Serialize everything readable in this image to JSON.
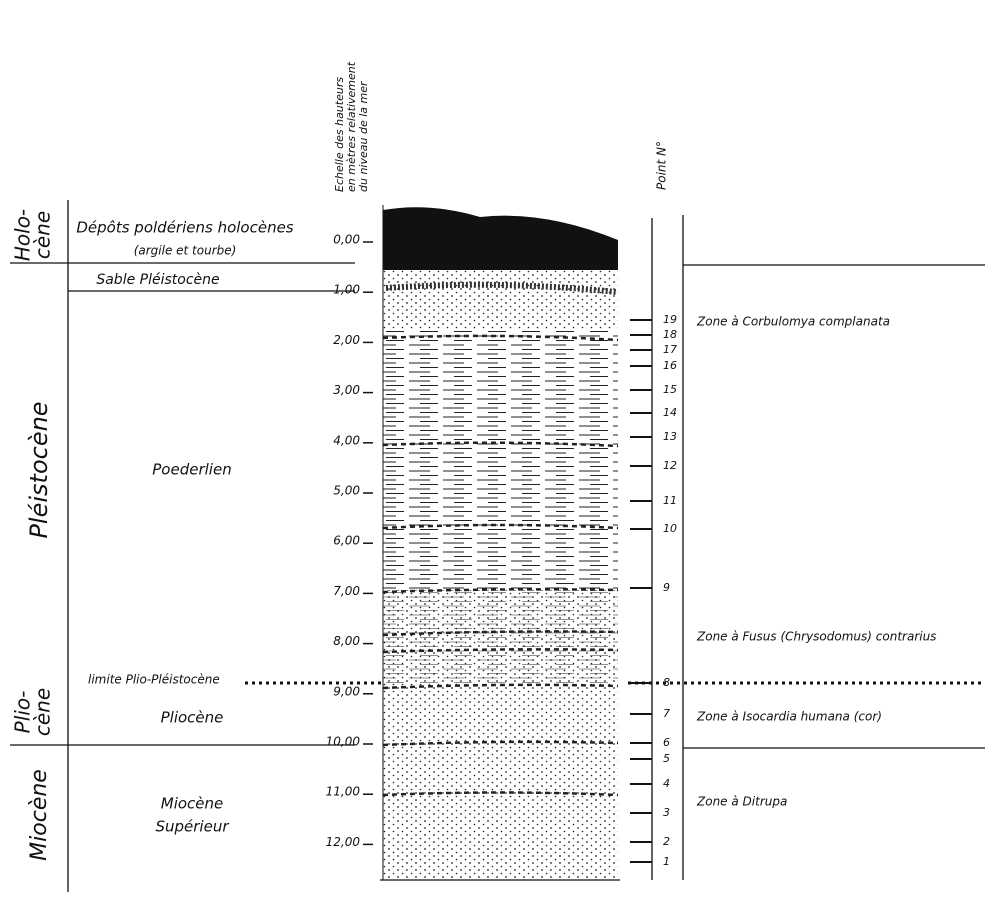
{
  "scale": {
    "title": [
      "Echelle des hauteurs",
      "en mètres relativement",
      "du niveau de la mer"
    ],
    "labels": [
      "0,00",
      "1,00",
      "2,00",
      "3,00",
      "4,00",
      "5,00",
      "6,00",
      "7,00",
      "8,00",
      "9,00",
      "10,00",
      "11,00",
      "12,00"
    ]
  },
  "points": {
    "title": "Point N°",
    "labels": [
      1,
      2,
      3,
      4,
      5,
      6,
      7,
      8,
      9,
      10,
      11,
      12,
      13,
      14,
      15,
      16,
      17,
      18,
      19
    ]
  },
  "epochs": [
    {
      "lines": [
        "Holo-",
        "cène"
      ]
    },
    {
      "lines": [
        "Pléistocène"
      ]
    },
    {
      "lines": [
        "Plio-",
        "cène"
      ]
    },
    {
      "lines": [
        "Miocène"
      ]
    }
  ],
  "layers": [
    {
      "lines": [
        "Dépôts poldériens holocènes",
        "(argile et tourbe)"
      ]
    },
    {
      "lines": [
        "Sable Pléistocène"
      ]
    },
    {
      "lines": [
        "Poederlien"
      ]
    },
    {
      "lines": [
        "Pliocène"
      ]
    },
    {
      "lines": [
        "Miocène",
        "Supérieur"
      ]
    }
  ],
  "boundary": "limite Plio-Pléistocène",
  "zones": [
    "Zone à Corbulomya complanata",
    "Zone à Fusus (Chrysodomus) contrarius",
    "Zone à Isocardia humana (cor)",
    "Zone à Ditrupa"
  ]
}
